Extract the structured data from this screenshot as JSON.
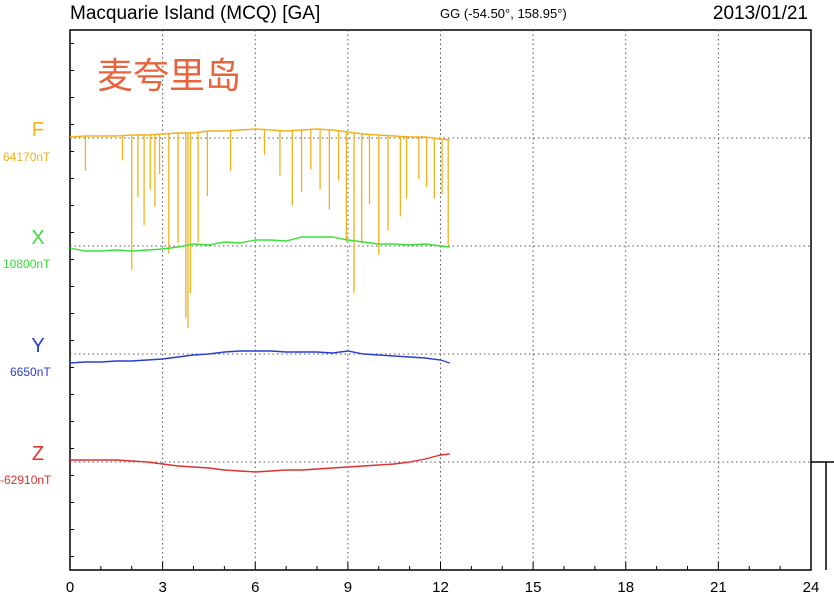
{
  "header": {
    "station": "Macquarie Island (MCQ)  [GA]",
    "coords": "GG (-54.50°, 158.95°)",
    "date": "2013/01/21"
  },
  "overlay_label": "麦夸里岛",
  "chart_data": {
    "type": "line",
    "x_label": "",
    "xlim": [
      0,
      24
    ],
    "x_ticks": [
      0,
      3,
      6,
      9,
      12,
      15,
      18,
      21,
      24
    ],
    "grid": true,
    "series": [
      {
        "name": "F",
        "baseline_label": "64170nT",
        "color": "#f0b21e",
        "points": [
          [
            0,
            -1
          ],
          [
            0.5,
            -2
          ],
          [
            1,
            -2
          ],
          [
            1.5,
            -2
          ],
          [
            2,
            -3
          ],
          [
            2.5,
            -3
          ],
          [
            3,
            -4
          ],
          [
            3.5,
            -5
          ],
          [
            4,
            -5
          ],
          [
            4.5,
            -7
          ],
          [
            5,
            -7
          ],
          [
            5.5,
            -8
          ],
          [
            6,
            -9
          ],
          [
            6.5,
            -8
          ],
          [
            7,
            -7
          ],
          [
            7.5,
            -8
          ],
          [
            8,
            -9
          ],
          [
            8.5,
            -8
          ],
          [
            9,
            -6
          ],
          [
            9.5,
            -4
          ],
          [
            10,
            -3
          ],
          [
            10.5,
            -2
          ],
          [
            11,
            -1
          ],
          [
            11.5,
            -1
          ],
          [
            12,
            1
          ],
          [
            12.3,
            2
          ]
        ],
        "spikes": [
          [
            0.5,
            35
          ],
          [
            1.7,
            25
          ],
          [
            2,
            135
          ],
          [
            2.2,
            62
          ],
          [
            2.4,
            90
          ],
          [
            2.6,
            55
          ],
          [
            2.75,
            72
          ],
          [
            2.9,
            40
          ],
          [
            3.2,
            120
          ],
          [
            3.5,
            110
          ],
          [
            3.75,
            185
          ],
          [
            3.82,
            195
          ],
          [
            3.9,
            160
          ],
          [
            4.15,
            110
          ],
          [
            4.45,
            65
          ],
          [
            5.2,
            40
          ],
          [
            6.3,
            25
          ],
          [
            6.8,
            45
          ],
          [
            7.2,
            75
          ],
          [
            7.5,
            62
          ],
          [
            7.8,
            40
          ],
          [
            8.1,
            60
          ],
          [
            8.4,
            80
          ],
          [
            8.7,
            50
          ],
          [
            8.95,
            110
          ],
          [
            9.2,
            160
          ],
          [
            9.45,
            110
          ],
          [
            9.7,
            70
          ],
          [
            10,
            120
          ],
          [
            10.3,
            95
          ],
          [
            10.7,
            80
          ],
          [
            10.9,
            62
          ],
          [
            11.3,
            42
          ],
          [
            11.55,
            50
          ],
          [
            11.8,
            60
          ],
          [
            12.05,
            55
          ],
          [
            12.25,
            105
          ]
        ]
      },
      {
        "name": "X",
        "baseline_label": "10800nT",
        "color": "#38e038",
        "points": [
          [
            0,
            2
          ],
          [
            0.5,
            5
          ],
          [
            1,
            5
          ],
          [
            1.5,
            4
          ],
          [
            2,
            5
          ],
          [
            2.5,
            4
          ],
          [
            3,
            3
          ],
          [
            3.5,
            1
          ],
          [
            4,
            -2
          ],
          [
            4.5,
            -1
          ],
          [
            5,
            -4
          ],
          [
            5.5,
            -3
          ],
          [
            6,
            -6
          ],
          [
            6.5,
            -6
          ],
          [
            7,
            -5
          ],
          [
            7.5,
            -9
          ],
          [
            8,
            -9
          ],
          [
            8.5,
            -9
          ],
          [
            9,
            -6
          ],
          [
            9.5,
            -4
          ],
          [
            10,
            -2
          ],
          [
            10.5,
            -2
          ],
          [
            11,
            -1
          ],
          [
            11.5,
            -2
          ],
          [
            12,
            0
          ],
          [
            12.3,
            1
          ]
        ]
      },
      {
        "name": "Y",
        "baseline_label": "6650nT",
        "color": "#2a3fcc",
        "points": [
          [
            0,
            9
          ],
          [
            0.5,
            8
          ],
          [
            1,
            8
          ],
          [
            1.5,
            7
          ],
          [
            2,
            7
          ],
          [
            2.5,
            6
          ],
          [
            3,
            5
          ],
          [
            3.5,
            3
          ],
          [
            4,
            1
          ],
          [
            4.5,
            0
          ],
          [
            5,
            -2
          ],
          [
            5.5,
            -3
          ],
          [
            6,
            -3
          ],
          [
            6.5,
            -3
          ],
          [
            7,
            -2
          ],
          [
            7.5,
            -2
          ],
          [
            8,
            -2
          ],
          [
            8.5,
            -1
          ],
          [
            9,
            -3
          ],
          [
            9.5,
            0
          ],
          [
            10,
            1
          ],
          [
            10.5,
            2
          ],
          [
            11,
            3
          ],
          [
            11.5,
            4
          ],
          [
            12,
            6
          ],
          [
            12.3,
            9
          ]
        ]
      },
      {
        "name": "Z",
        "baseline_label": "-62910nT",
        "color": "#dc3232",
        "points": [
          [
            0,
            -2
          ],
          [
            0.5,
            -2
          ],
          [
            1,
            -2
          ],
          [
            1.5,
            -2
          ],
          [
            2,
            -1
          ],
          [
            2.5,
            0
          ],
          [
            3,
            2
          ],
          [
            3.5,
            4
          ],
          [
            4,
            5
          ],
          [
            4.5,
            6
          ],
          [
            5,
            8
          ],
          [
            5.5,
            9
          ],
          [
            6,
            10
          ],
          [
            6.5,
            9
          ],
          [
            7,
            8
          ],
          [
            7.5,
            8
          ],
          [
            8,
            7
          ],
          [
            8.5,
            6
          ],
          [
            9,
            5
          ],
          [
            9.5,
            4
          ],
          [
            10,
            3
          ],
          [
            10.5,
            2
          ],
          [
            11,
            0
          ],
          [
            11.5,
            -3
          ],
          [
            12,
            -7
          ],
          [
            12.3,
            -8
          ]
        ]
      }
    ]
  }
}
